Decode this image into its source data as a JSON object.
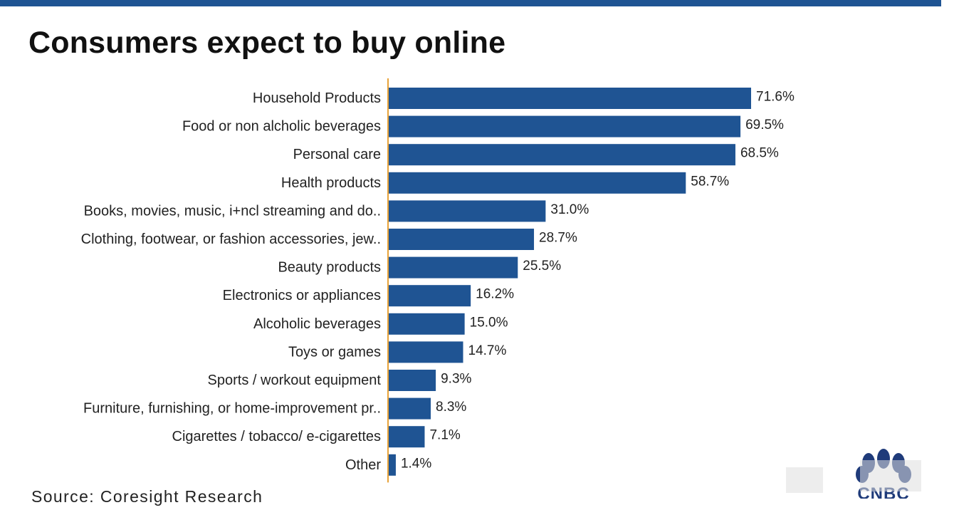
{
  "header": {
    "title": "Consumers expect to buy online"
  },
  "footer": {
    "source": "Source: Coresight Research",
    "brand": "CNBC"
  },
  "colors": {
    "bar": "#1f5493",
    "axis": "#e8a33a",
    "band": "#1f5493"
  },
  "chart_data": {
    "type": "bar",
    "orientation": "horizontal",
    "title": "Consumers expect to buy online",
    "xlabel": "",
    "ylabel": "",
    "xlim": [
      0,
      100
    ],
    "grid": false,
    "categories": [
      "Household Products",
      "Food or non alcholic beverages",
      "Personal care",
      "Health products",
      "Books, movies, music, i+ncl streaming and do..",
      "Clothing, footwear, or fashion accessories, jew..",
      "Beauty products",
      "Electronics or appliances",
      "Alcoholic beverages",
      "Toys or games",
      "Sports / workout equipment",
      "Furniture, furnishing, or home-improvement pr..",
      "Cigarettes / tobacco/ e-cigarettes",
      "Other"
    ],
    "values": [
      71.6,
      69.5,
      68.5,
      58.7,
      31.0,
      28.7,
      25.5,
      16.2,
      15.0,
      14.7,
      9.3,
      8.3,
      7.1,
      1.4
    ],
    "value_labels": [
      "71.6%",
      "69.5%",
      "68.5%",
      "58.7%",
      "31.0%",
      "28.7%",
      "25.5%",
      "16.2%",
      "15.0%",
      "14.7%",
      "9.3%",
      "8.3%",
      "7.1%",
      "1.4%"
    ]
  }
}
